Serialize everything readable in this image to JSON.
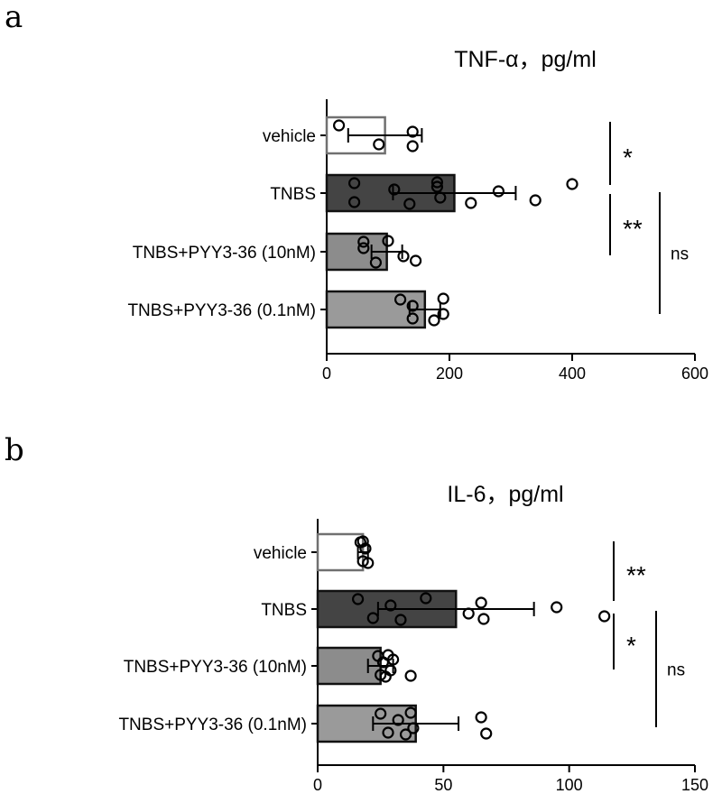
{
  "chart_data": [
    {
      "type": "bar",
      "orientation": "horizontal",
      "panel_label": "a",
      "title": "TNF-α，pg/ml",
      "xlabel": "",
      "ylabel": "",
      "xlim": [
        0,
        600
      ],
      "xticks": [
        0,
        200,
        400,
        600
      ],
      "categories": [
        "vehicle",
        "TNBS",
        "TNBS+PYY3-36 (10nM)",
        "TNBS+PYY3-36 (0.1nM)"
      ],
      "values": [
        95,
        208,
        98,
        160
      ],
      "errors": [
        60,
        100,
        25,
        25
      ],
      "bar_colors": [
        "#ffffff",
        "#444444",
        "#8c8c8c",
        "#9a9a9a"
      ],
      "bar_edge_colors": [
        "#707070",
        "#111111",
        "#111111",
        "#111111"
      ],
      "points": [
        [
          20,
          85,
          140,
          140
        ],
        [
          45,
          45,
          110,
          135,
          180,
          185,
          180,
          235,
          280,
          340,
          400
        ],
        [
          60,
          145,
          60,
          80,
          100,
          125
        ],
        [
          120,
          140,
          140,
          175,
          190,
          190
        ]
      ],
      "significance": [
        {
          "from": 0,
          "to": 1,
          "label": "*",
          "lane": 0
        },
        {
          "from": 1,
          "to": 2,
          "label": "**",
          "lane": 0
        },
        {
          "from": 1,
          "to": 3,
          "label": "ns",
          "lane": 1
        }
      ]
    },
    {
      "type": "bar",
      "orientation": "horizontal",
      "panel_label": "b",
      "title": "IL-6，pg/ml",
      "xlabel": "",
      "ylabel": "",
      "xlim": [
        0,
        150
      ],
      "xticks": [
        0,
        50,
        100,
        150
      ],
      "categories": [
        "vehicle",
        "TNBS",
        "TNBS+PYY3-36 (10nM)",
        "TNBS+PYY3-36 (0.1nM)"
      ],
      "values": [
        18,
        55,
        25,
        39
      ],
      "errors": [
        2,
        31,
        5,
        17
      ],
      "bar_colors": [
        "#ffffff",
        "#444444",
        "#8c8c8c",
        "#9a9a9a"
      ],
      "bar_edge_colors": [
        "#707070",
        "#111111",
        "#111111",
        "#111111"
      ],
      "points": [
        [
          17,
          18,
          19,
          20,
          18
        ],
        [
          16,
          22,
          29,
          33,
          43,
          60,
          65,
          66,
          95,
          114
        ],
        [
          24,
          25,
          26,
          27,
          28,
          29,
          30,
          37
        ],
        [
          25,
          28,
          32,
          35,
          37,
          38,
          65,
          67
        ]
      ],
      "significance": [
        {
          "from": 0,
          "to": 1,
          "label": "**",
          "lane": 0
        },
        {
          "from": 1,
          "to": 2,
          "label": "*",
          "lane": 0
        },
        {
          "from": 1,
          "to": 3,
          "label": "ns",
          "lane": 1
        }
      ]
    }
  ]
}
